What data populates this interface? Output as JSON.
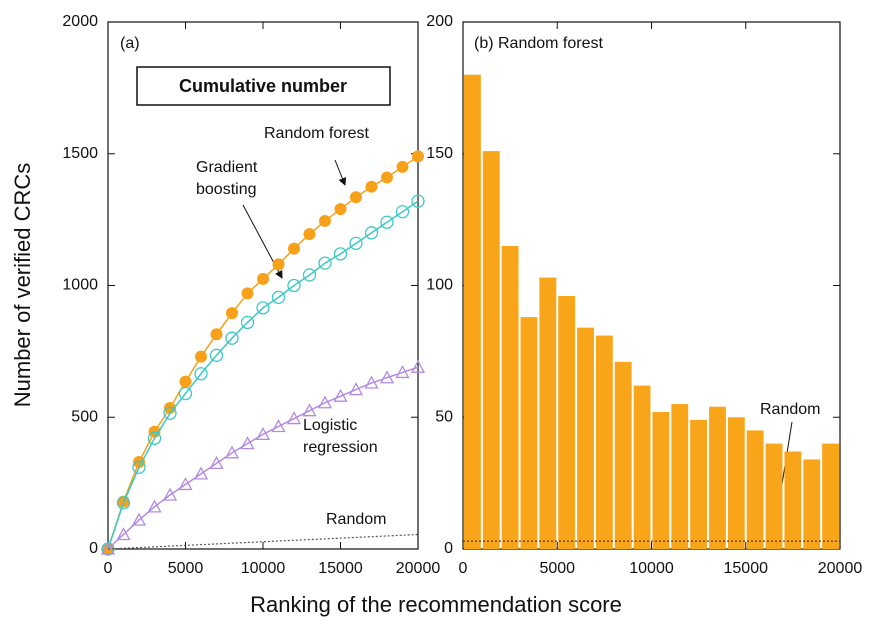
{
  "chart_data": [
    {
      "type": "line",
      "xlabel": "Ranking of the recommendation score",
      "ylabel": "Number of verified CRCs",
      "panel_label": "(a)",
      "box_title": "Cumulative number",
      "x": [
        0,
        1000,
        2000,
        3000,
        4000,
        5000,
        6000,
        7000,
        8000,
        9000,
        10000,
        11000,
        12000,
        13000,
        14000,
        15000,
        16000,
        17000,
        18000,
        19000,
        20000
      ],
      "series": [
        {
          "name": "Random forest",
          "color": "#f7a11a",
          "marker": "filled-circle",
          "values": [
            0,
            180,
            330,
            445,
            535,
            635,
            730,
            815,
            895,
            970,
            1025,
            1080,
            1140,
            1195,
            1245,
            1290,
            1335,
            1375,
            1410,
            1450,
            1490
          ]
        },
        {
          "name": "Gradient boosting",
          "color": "#3cc8c8",
          "marker": "open-circle",
          "values": [
            0,
            175,
            310,
            420,
            515,
            590,
            665,
            735,
            800,
            860,
            915,
            955,
            1000,
            1040,
            1085,
            1120,
            1160,
            1200,
            1240,
            1280,
            1320
          ]
        },
        {
          "name": "Logistic regression",
          "color": "#b48ae0",
          "marker": "open-triangle",
          "values": [
            0,
            55,
            110,
            160,
            205,
            245,
            285,
            325,
            365,
            400,
            435,
            465,
            495,
            525,
            555,
            580,
            605,
            630,
            650,
            670,
            690
          ]
        },
        {
          "name": "Random",
          "color": "#555555",
          "marker": "none",
          "x": [
            0,
            20000
          ],
          "values": [
            0,
            55
          ]
        }
      ],
      "xlim": [
        0,
        20000
      ],
      "xticks": [
        0,
        5000,
        10000,
        15000,
        20000
      ],
      "ylim": [
        0,
        2000
      ],
      "yticks": [
        0,
        500,
        1000,
        1500,
        2000
      ]
    },
    {
      "type": "histogram",
      "panel_label": "(b) Random forest",
      "color": "#f9a51a",
      "bins": [
        0,
        1000,
        2000,
        3000,
        4000,
        5000,
        6000,
        7000,
        8000,
        9000,
        10000,
        11000,
        12000,
        13000,
        14000,
        15000,
        16000,
        17000,
        18000,
        19000,
        20000
      ],
      "values": [
        180,
        151,
        115,
        88,
        103,
        96,
        84,
        81,
        71,
        62,
        52,
        55,
        49,
        54,
        50,
        45,
        40,
        37,
        34,
        40
      ],
      "reference": {
        "name": "Random",
        "value": 3
      },
      "xlim": [
        0,
        20000
      ],
      "xticks": [
        0,
        5000,
        10000,
        15000,
        20000
      ],
      "ylim": [
        0,
        200
      ],
      "yticks": [
        0,
        50,
        100,
        150,
        200
      ]
    }
  ]
}
